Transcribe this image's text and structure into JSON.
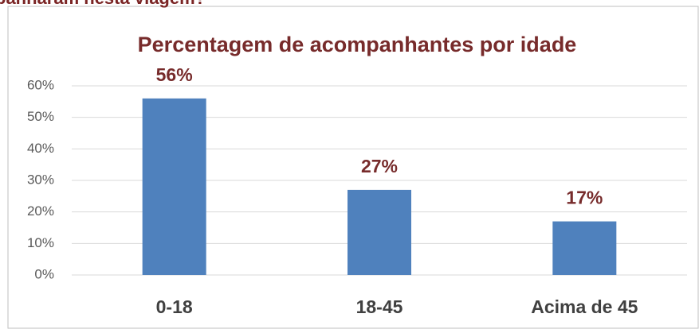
{
  "caption": "panharam nesta viagem?",
  "chart_data": {
    "type": "bar",
    "title": "Percentagem de acompanhantes por idade",
    "categories": [
      "0-18",
      "18-45",
      "Acima de 45"
    ],
    "values": [
      56,
      27,
      17
    ],
    "value_labels": [
      "56%",
      "27%",
      "17%"
    ],
    "color": "#4f81bd",
    "ylim": [
      0,
      60
    ],
    "yticks": [
      {
        "value": 0,
        "label": "0%"
      },
      {
        "value": 10,
        "label": "10%"
      },
      {
        "value": 20,
        "label": "20%"
      },
      {
        "value": 30,
        "label": "30%"
      },
      {
        "value": 40,
        "label": "40%"
      },
      {
        "value": 50,
        "label": "50%"
      },
      {
        "value": 60,
        "label": "60%"
      }
    ],
    "grid": true
  }
}
